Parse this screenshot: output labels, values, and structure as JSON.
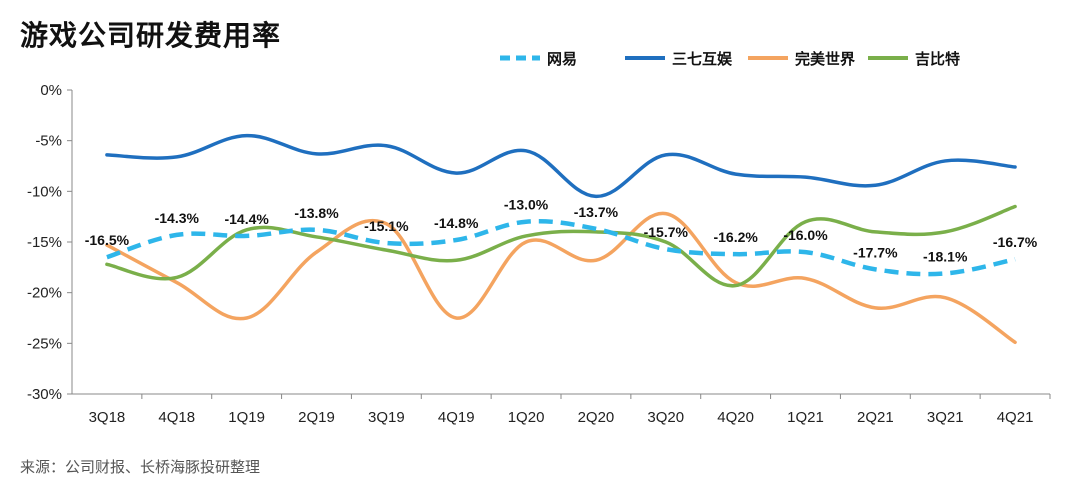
{
  "chart_data": {
    "type": "line",
    "title": "游戏公司研发费用率",
    "source": "来源：公司财报、长桥海豚投研整理",
    "categories": [
      "3Q18",
      "4Q18",
      "1Q19",
      "2Q19",
      "3Q19",
      "4Q19",
      "1Q20",
      "2Q20",
      "3Q20",
      "4Q20",
      "1Q21",
      "2Q21",
      "3Q21",
      "4Q21"
    ],
    "ylim": [
      -30,
      0
    ],
    "yticks": [
      0,
      -5,
      -10,
      -15,
      -20,
      -25,
      -30
    ],
    "ytick_labels": [
      "0%",
      "-5%",
      "-10%",
      "-15%",
      "-20%",
      "-25%",
      "-30%"
    ],
    "legend_position": "top-right",
    "series": [
      {
        "name": "网易",
        "color": "#2EB6EA",
        "dashed": true,
        "values": [
          -16.5,
          -14.3,
          -14.4,
          -13.8,
          -15.1,
          -14.8,
          -13.0,
          -13.7,
          -15.7,
          -16.2,
          -16.0,
          -17.7,
          -18.1,
          -16.7
        ],
        "labels": [
          "-16.5%",
          "-14.3%",
          "-14.4%",
          "-13.8%",
          "-15.1%",
          "-14.8%",
          "-13.0%",
          "-13.7%",
          "-15.7%",
          "-16.2%",
          "-16.0%",
          "-17.7%",
          "-18.1%",
          "-16.7%"
        ]
      },
      {
        "name": "三七互娱",
        "color": "#1F6FBF",
        "dashed": false,
        "values": [
          -6.4,
          -6.6,
          -4.5,
          -6.3,
          -5.5,
          -8.2,
          -6.0,
          -10.5,
          -6.4,
          -8.3,
          -8.6,
          -9.4,
          -7.0,
          -7.6
        ]
      },
      {
        "name": "完美世界",
        "color": "#F4A460",
        "dashed": false,
        "values": [
          -15.3,
          -19.0,
          -22.5,
          -16.0,
          -13.2,
          -22.5,
          -15.0,
          -16.8,
          -12.2,
          -19.0,
          -18.6,
          -21.5,
          -20.5,
          -24.9
        ]
      },
      {
        "name": "吉比特",
        "color": "#7AAF4A",
        "dashed": false,
        "values": [
          -17.2,
          -18.5,
          -13.8,
          -14.5,
          -15.8,
          -16.8,
          -14.4,
          -14.0,
          -15.0,
          -19.3,
          -13.0,
          -14.0,
          -14.0,
          -11.5
        ]
      }
    ]
  }
}
